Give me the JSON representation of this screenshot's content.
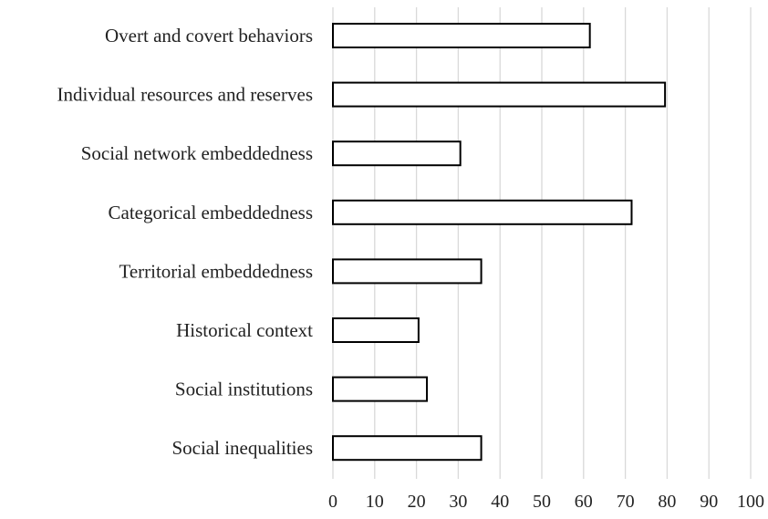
{
  "chart_data": {
    "type": "bar",
    "orientation": "horizontal",
    "categories": [
      "Overt and covert behaviors",
      "Individual resources and reserves",
      "Social network embeddedness",
      "Categorical embeddedness",
      "Territorial embeddedness",
      "Historical context",
      "Social institutions",
      "Social inequalities"
    ],
    "values": [
      61.5,
      79.5,
      30.5,
      71.5,
      35.5,
      20.5,
      22.5,
      35.5
    ],
    "title": "",
    "xlabel": "",
    "ylabel": "",
    "xlim": [
      0,
      100
    ],
    "xticks": [
      "0",
      "10",
      "20",
      "30",
      "40",
      "50",
      "60",
      "70",
      "80",
      "90",
      "100"
    ],
    "grid": "vertical",
    "legend": "none",
    "bar_fill": "#ffffff",
    "bar_edge": "#000000",
    "grid_color": "#d9d9d9"
  }
}
